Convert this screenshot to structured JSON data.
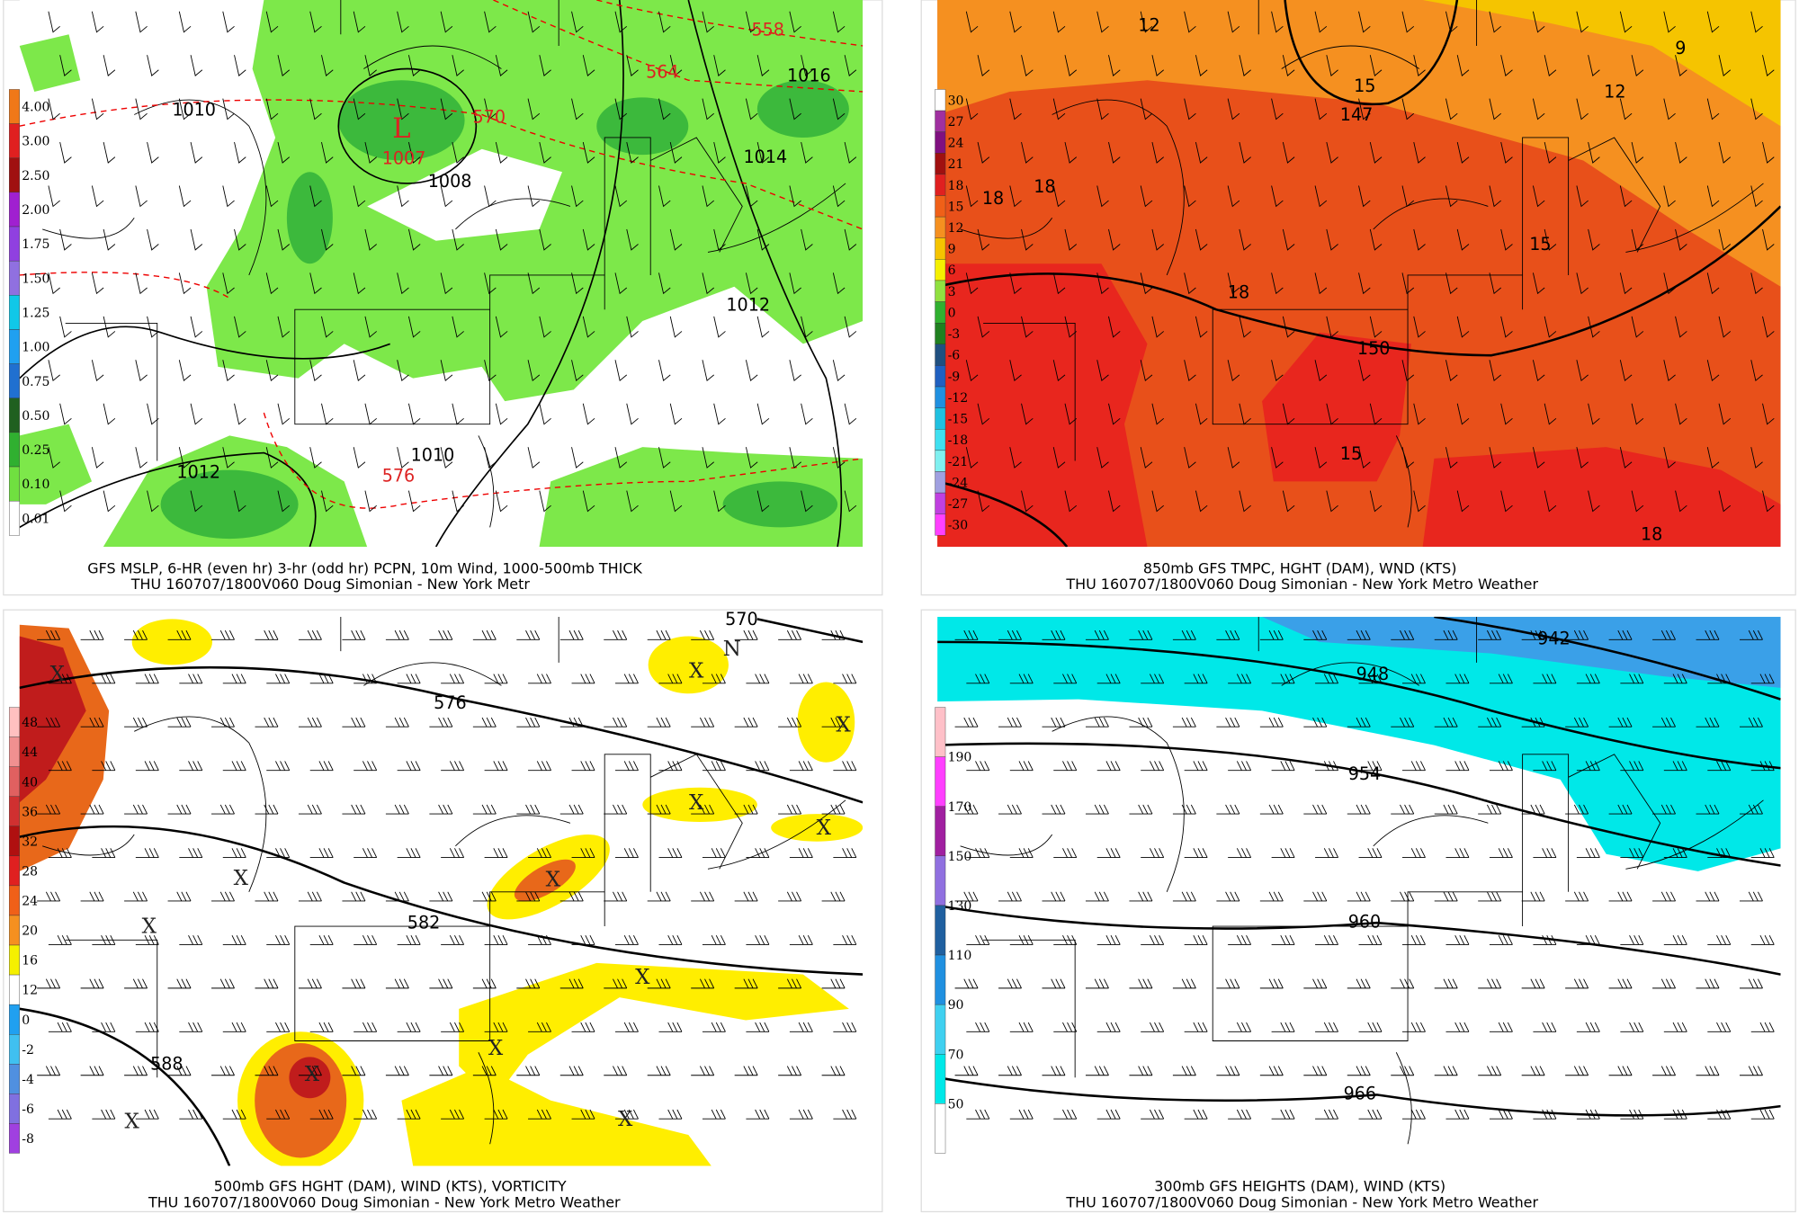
{
  "panels": [
    {
      "caption": [
        "GFS MSLP, 6-HR (even hr) 3-hr (odd hr) PCPN, 10m Wind, 1000-500mb THICK",
        "THU 160707/1800V060 Doug Simonian - New York Metr"
      ],
      "colorbar": [
        "4.00",
        "3.00",
        "2.50",
        "2.00",
        "1.75",
        "1.50",
        "1.25",
        "1.00",
        "0.75",
        "0.50",
        "0.25",
        "0.10",
        "0.01"
      ],
      "labels": [
        "1010",
        "L",
        "1007",
        "570",
        "564",
        "558",
        "1016",
        "1014",
        "1008",
        "1012",
        "1012",
        "1010",
        "576"
      ]
    },
    {
      "caption": [
        "850mb GFS TMPC, HGHT (DAM), WND (KTS)",
        "THU 160707/1800V060 Doug Simonian - New York Metro Weather"
      ],
      "colorbar": [
        "30",
        "27",
        "24",
        "21",
        "18",
        "15",
        "12",
        "9",
        "6",
        "3",
        "0",
        "-3",
        "-6",
        "-9",
        "-12",
        "-15",
        "-18",
        "-21",
        "-24",
        "-27",
        "-30"
      ],
      "labels": [
        "12",
        "9",
        "12",
        "15",
        "147",
        "18",
        "18",
        "15",
        "18",
        "150",
        "15",
        "18"
      ]
    },
    {
      "caption": [
        "500mb GFS HGHT (DAM), WIND (KTS), VORTICITY",
        "THU 160707/1800V060 Doug Simonian - New York Metro Weather"
      ],
      "colorbar": [
        "48",
        "44",
        "40",
        "36",
        "32",
        "28",
        "24",
        "20",
        "16",
        "12",
        "0",
        "-2",
        "-4",
        "-6",
        "-8"
      ],
      "labels": [
        "576",
        "582",
        "588",
        "570",
        "N",
        "X",
        "X",
        "X",
        "X",
        "X",
        "X",
        "X",
        "X",
        "X",
        "X",
        "X",
        "X",
        "X"
      ]
    },
    {
      "caption": [
        "300mb GFS HEIGHTS (DAM), WIND (KTS)",
        "THU 160707/1800V060 Doug Simonian - New York Metro Weather"
      ],
      "colorbar": [
        "190",
        "170",
        "150",
        "130",
        "110",
        "90",
        "70",
        "50"
      ],
      "labels": [
        "942",
        "948",
        "954",
        "960",
        "966"
      ]
    }
  ]
}
